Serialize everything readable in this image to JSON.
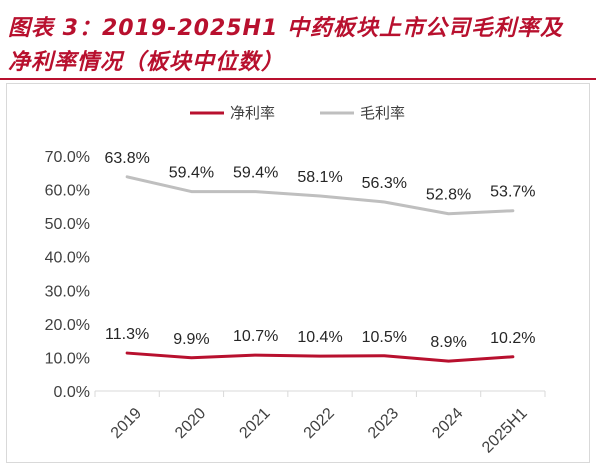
{
  "title": {
    "line1": "图表 3：2019-2025H1 中药板块上市公司毛利率及",
    "line2": "净利率情况（板块中位数）"
  },
  "colors": {
    "title": "#b8102e",
    "net_margin": "#b8102e",
    "gross_margin": "#bfbfbf"
  },
  "chart_data": {
    "type": "line",
    "categories": [
      "2019",
      "2020",
      "2021",
      "2022",
      "2023",
      "2024",
      "2025H1"
    ],
    "series": [
      {
        "name": "净利率",
        "values": [
          11.3,
          9.9,
          10.7,
          10.4,
          10.5,
          8.9,
          10.2
        ],
        "labels": [
          "11.3%",
          "9.9%",
          "10.7%",
          "10.4%",
          "10.5%",
          "8.9%",
          "10.2%"
        ]
      },
      {
        "name": "毛利率",
        "values": [
          63.8,
          59.4,
          59.4,
          58.1,
          56.3,
          52.8,
          53.7
        ],
        "labels": [
          "63.8%",
          "59.4%",
          "59.4%",
          "58.1%",
          "56.3%",
          "52.8%",
          "53.7%"
        ]
      }
    ],
    "yticks": [
      "0.0%",
      "10.0%",
      "20.0%",
      "30.0%",
      "40.0%",
      "50.0%",
      "60.0%",
      "70.0%"
    ],
    "ylim": [
      0,
      70
    ],
    "legend": "top-center",
    "grid": false
  }
}
